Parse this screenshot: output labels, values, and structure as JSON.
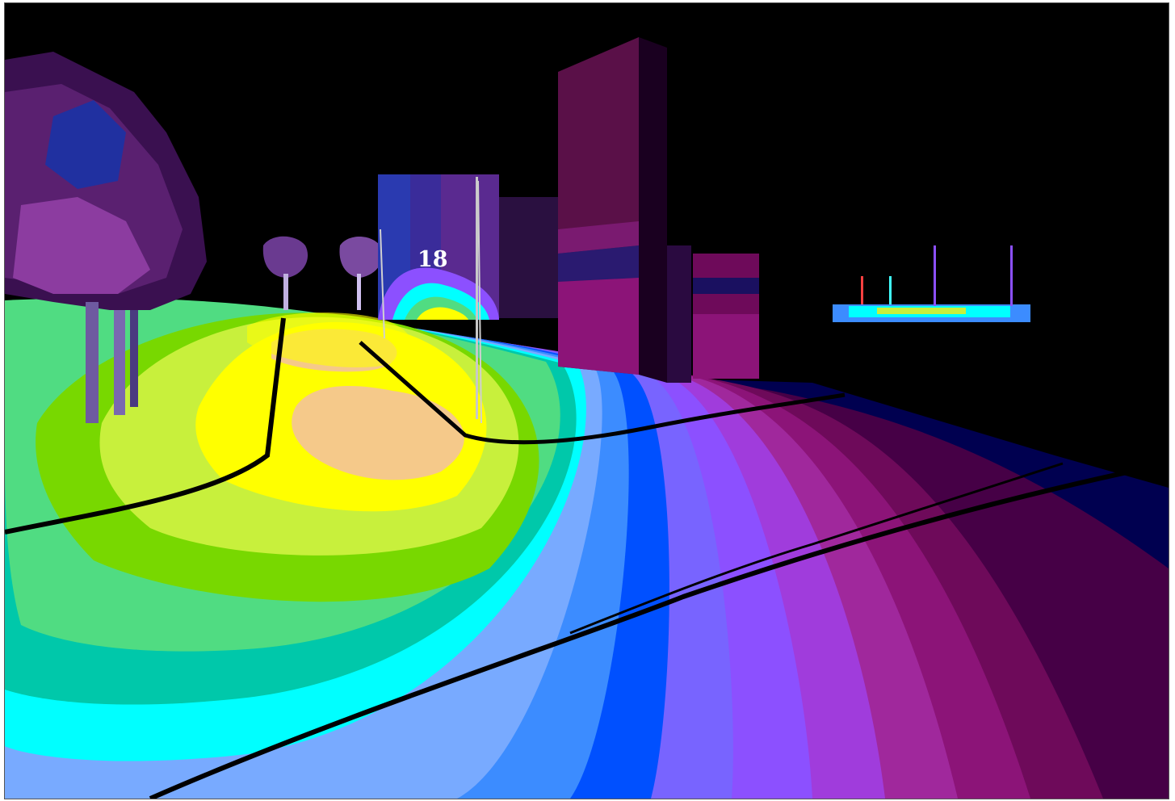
{
  "view": {
    "marker_label": "18"
  },
  "palette": {
    "background": "#000000",
    "contour_levels": [
      "#f5c98a",
      "#ffff00",
      "#c8f03c",
      "#78d800",
      "#50dc82",
      "#00c8aa",
      "#00ffff",
      "#78aaff",
      "#3c8cff",
      "#0050ff",
      "#7864ff",
      "#8c50ff",
      "#a03cdc",
      "#a0289c",
      "#8c1478",
      "#6e0a5a",
      "#460046",
      "#000050"
    ]
  }
}
